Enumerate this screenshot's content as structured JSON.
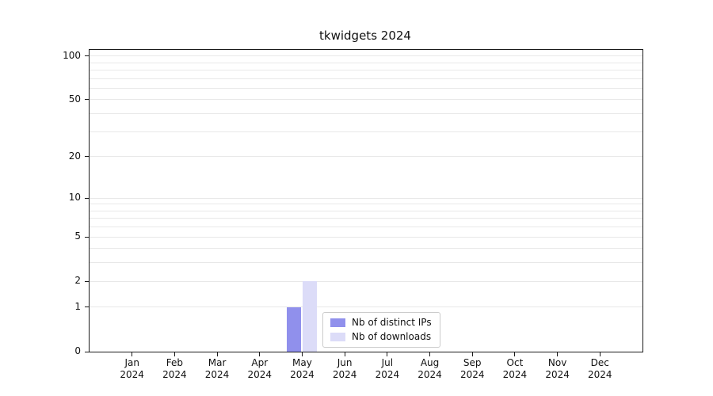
{
  "chart_data": {
    "type": "bar",
    "title": "tkwidgets 2024",
    "xlabel": "",
    "ylabel": "",
    "scale": "log1p",
    "ylim": [
      0,
      110
    ],
    "grid": true,
    "categories": [
      {
        "month": "Jan",
        "year": "2024"
      },
      {
        "month": "Feb",
        "year": "2024"
      },
      {
        "month": "Mar",
        "year": "2024"
      },
      {
        "month": "Apr",
        "year": "2024"
      },
      {
        "month": "May",
        "year": "2024"
      },
      {
        "month": "Jun",
        "year": "2024"
      },
      {
        "month": "Jul",
        "year": "2024"
      },
      {
        "month": "Aug",
        "year": "2024"
      },
      {
        "month": "Sep",
        "year": "2024"
      },
      {
        "month": "Oct",
        "year": "2024"
      },
      {
        "month": "Nov",
        "year": "2024"
      },
      {
        "month": "Dec",
        "year": "2024"
      }
    ],
    "series": [
      {
        "name": "Nb of distinct IPs",
        "color": "#9090ec",
        "values": [
          0,
          0,
          0,
          0,
          1,
          0,
          0,
          0,
          0,
          0,
          0,
          0
        ]
      },
      {
        "name": "Nb of downloads",
        "color": "#dcdcf8",
        "values": [
          0,
          0,
          0,
          0,
          2,
          0,
          0,
          0,
          0,
          0,
          0,
          0
        ]
      }
    ],
    "yticks": [
      0,
      1,
      2,
      5,
      10,
      20,
      50,
      100
    ],
    "gridlines": [
      1,
      2,
      3,
      4,
      5,
      6,
      7,
      8,
      9,
      10,
      20,
      30,
      40,
      50,
      60,
      70,
      80,
      90,
      100
    ],
    "legend": {
      "position": "lower center"
    }
  }
}
